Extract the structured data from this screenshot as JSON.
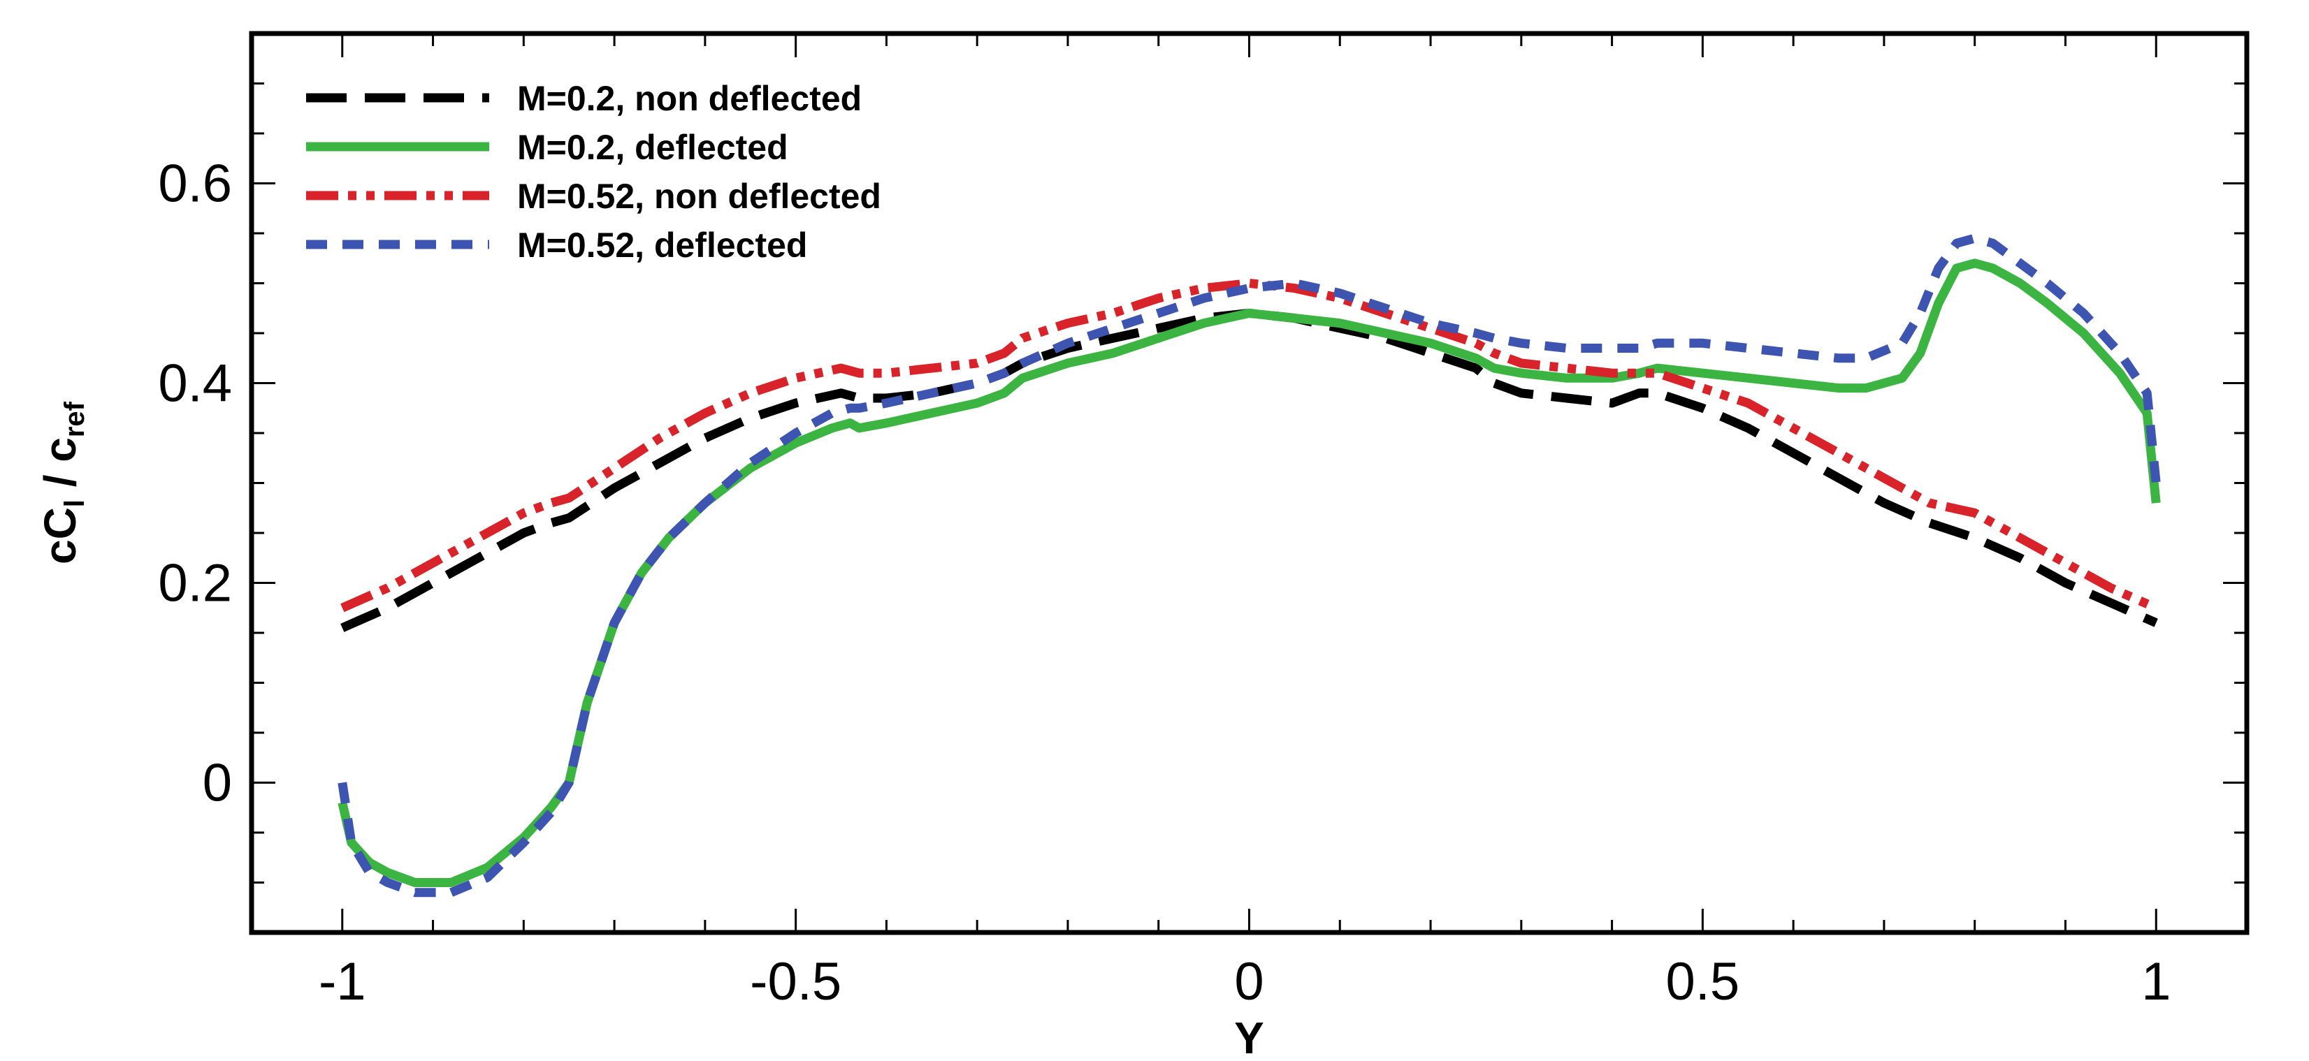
{
  "chart_data": {
    "type": "line",
    "title": "",
    "xlabel": "Y",
    "ylabel": {
      "main": "cC",
      "sub1": "l",
      "sep": " / c",
      "sub2": "ref"
    },
    "xlim": [
      -1.1,
      1.1
    ],
    "ylim": [
      -0.15,
      0.75
    ],
    "xticks": [
      -1,
      -0.5,
      0,
      0.5,
      1
    ],
    "xtick_labels": [
      "-1",
      "-0.5",
      "0",
      "0.5",
      "1"
    ],
    "yticks": [
      0,
      0.2,
      0.4,
      0.6
    ],
    "ytick_labels": [
      "0",
      "0.2",
      "0.4",
      "0.6"
    ],
    "x_minor_step": 0.1,
    "y_minor_step": 0.05,
    "grid": false,
    "legend_position": "top-left",
    "series": [
      {
        "name": "M=0.2, non deflected",
        "color": "#000000",
        "dash": "dashed",
        "x": [
          -1.0,
          -0.95,
          -0.9,
          -0.85,
          -0.8,
          -0.77,
          -0.75,
          -0.7,
          -0.65,
          -0.6,
          -0.55,
          -0.5,
          -0.45,
          -0.43,
          -0.4,
          -0.35,
          -0.3,
          -0.27,
          -0.25,
          -0.2,
          -0.15,
          -0.1,
          -0.05,
          0.0,
          0.05,
          0.1,
          0.15,
          0.2,
          0.25,
          0.27,
          0.3,
          0.35,
          0.4,
          0.43,
          0.45,
          0.5,
          0.55,
          0.6,
          0.65,
          0.7,
          0.75,
          0.8,
          0.85,
          0.9,
          0.95,
          1.0
        ],
        "y": [
          0.155,
          0.175,
          0.2,
          0.225,
          0.25,
          0.26,
          0.265,
          0.295,
          0.32,
          0.345,
          0.365,
          0.38,
          0.39,
          0.385,
          0.385,
          0.39,
          0.4,
          0.41,
          0.42,
          0.435,
          0.445,
          0.455,
          0.465,
          0.47,
          0.465,
          0.455,
          0.445,
          0.43,
          0.415,
          0.4,
          0.39,
          0.385,
          0.38,
          0.39,
          0.39,
          0.375,
          0.355,
          0.33,
          0.305,
          0.28,
          0.26,
          0.245,
          0.225,
          0.2,
          0.18,
          0.16
        ]
      },
      {
        "name": "M=0.2, deflected",
        "color": "#3cb441",
        "dash": "solid",
        "x": [
          -1.0,
          -0.99,
          -0.97,
          -0.95,
          -0.92,
          -0.88,
          -0.84,
          -0.8,
          -0.77,
          -0.75,
          -0.73,
          -0.7,
          -0.67,
          -0.64,
          -0.6,
          -0.55,
          -0.5,
          -0.46,
          -0.44,
          -0.43,
          -0.4,
          -0.35,
          -0.3,
          -0.27,
          -0.25,
          -0.2,
          -0.15,
          -0.1,
          -0.05,
          0.0,
          0.05,
          0.1,
          0.15,
          0.2,
          0.25,
          0.27,
          0.3,
          0.35,
          0.4,
          0.43,
          0.45,
          0.5,
          0.55,
          0.6,
          0.65,
          0.68,
          0.72,
          0.74,
          0.76,
          0.78,
          0.8,
          0.82,
          0.85,
          0.88,
          0.92,
          0.96,
          0.99,
          1.0
        ],
        "y": [
          -0.02,
          -0.06,
          -0.08,
          -0.09,
          -0.1,
          -0.1,
          -0.085,
          -0.055,
          -0.025,
          0.0,
          0.08,
          0.16,
          0.21,
          0.245,
          0.28,
          0.315,
          0.34,
          0.355,
          0.36,
          0.355,
          0.36,
          0.37,
          0.38,
          0.39,
          0.405,
          0.42,
          0.43,
          0.445,
          0.46,
          0.47,
          0.465,
          0.46,
          0.45,
          0.44,
          0.425,
          0.415,
          0.41,
          0.405,
          0.405,
          0.41,
          0.415,
          0.41,
          0.405,
          0.4,
          0.395,
          0.395,
          0.405,
          0.43,
          0.48,
          0.515,
          0.52,
          0.515,
          0.5,
          0.48,
          0.45,
          0.41,
          0.37,
          0.28
        ]
      },
      {
        "name": "M=0.52, non deflected",
        "color": "#d9232a",
        "dash": "dashdot",
        "x": [
          -1.0,
          -0.95,
          -0.9,
          -0.85,
          -0.8,
          -0.77,
          -0.75,
          -0.7,
          -0.65,
          -0.6,
          -0.55,
          -0.5,
          -0.45,
          -0.43,
          -0.4,
          -0.35,
          -0.3,
          -0.27,
          -0.25,
          -0.2,
          -0.15,
          -0.1,
          -0.05,
          0.0,
          0.05,
          0.1,
          0.15,
          0.2,
          0.25,
          0.27,
          0.3,
          0.35,
          0.4,
          0.43,
          0.45,
          0.5,
          0.55,
          0.6,
          0.65,
          0.7,
          0.75,
          0.8,
          0.85,
          0.9,
          0.95,
          1.0
        ],
        "y": [
          0.175,
          0.195,
          0.22,
          0.245,
          0.27,
          0.28,
          0.285,
          0.315,
          0.345,
          0.37,
          0.39,
          0.405,
          0.415,
          0.41,
          0.41,
          0.415,
          0.42,
          0.43,
          0.445,
          0.46,
          0.47,
          0.485,
          0.495,
          0.5,
          0.495,
          0.485,
          0.47,
          0.455,
          0.44,
          0.43,
          0.42,
          0.415,
          0.41,
          0.41,
          0.41,
          0.395,
          0.38,
          0.355,
          0.33,
          0.305,
          0.28,
          0.27,
          0.245,
          0.22,
          0.195,
          0.175
        ]
      },
      {
        "name": "M=0.52, deflected",
        "color": "#3d55b0",
        "dash": "shortdash",
        "x": [
          -1.0,
          -0.99,
          -0.97,
          -0.95,
          -0.92,
          -0.88,
          -0.84,
          -0.8,
          -0.77,
          -0.75,
          -0.73,
          -0.7,
          -0.67,
          -0.64,
          -0.6,
          -0.55,
          -0.5,
          -0.46,
          -0.44,
          -0.43,
          -0.4,
          -0.35,
          -0.3,
          -0.27,
          -0.25,
          -0.2,
          -0.15,
          -0.1,
          -0.05,
          0.0,
          0.05,
          0.1,
          0.15,
          0.2,
          0.25,
          0.27,
          0.3,
          0.35,
          0.4,
          0.43,
          0.45,
          0.5,
          0.55,
          0.6,
          0.65,
          0.68,
          0.72,
          0.74,
          0.76,
          0.78,
          0.8,
          0.82,
          0.85,
          0.88,
          0.92,
          0.96,
          0.99,
          1.0
        ],
        "y": [
          0.0,
          -0.06,
          -0.09,
          -0.1,
          -0.11,
          -0.11,
          -0.095,
          -0.06,
          -0.03,
          0.0,
          0.08,
          0.16,
          0.21,
          0.245,
          0.28,
          0.32,
          0.35,
          0.37,
          0.375,
          0.375,
          0.38,
          0.39,
          0.4,
          0.41,
          0.42,
          0.44,
          0.455,
          0.47,
          0.485,
          0.495,
          0.5,
          0.49,
          0.475,
          0.46,
          0.45,
          0.445,
          0.44,
          0.435,
          0.435,
          0.435,
          0.44,
          0.44,
          0.435,
          0.43,
          0.425,
          0.425,
          0.44,
          0.47,
          0.515,
          0.54,
          0.545,
          0.54,
          0.52,
          0.5,
          0.47,
          0.43,
          0.39,
          0.3
        ]
      }
    ]
  }
}
